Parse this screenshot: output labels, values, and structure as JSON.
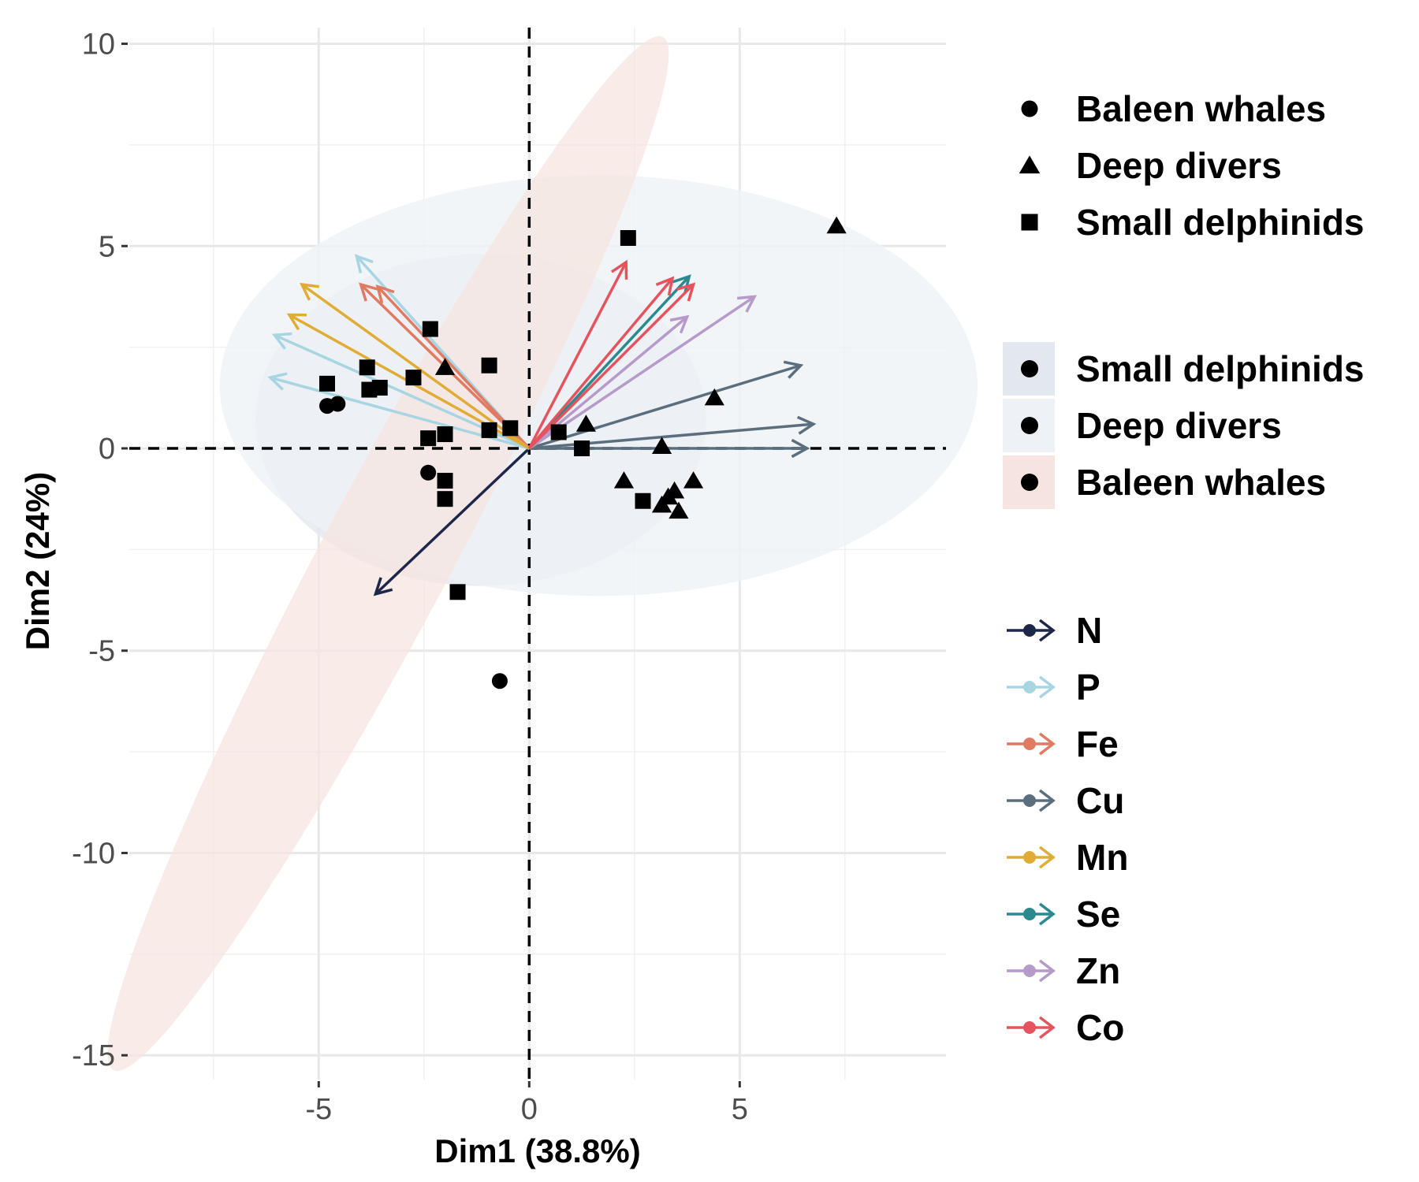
{
  "chart_data": {
    "type": "scatter",
    "xlabel": "Dim1 (38.8%)",
    "ylabel": "Dim2 (24%)",
    "xlim": [
      -9.5,
      9.9
    ],
    "ylim": [
      -15.6,
      10.4
    ],
    "x_ticks": [
      -5,
      0,
      5
    ],
    "x_tick_labels": [
      "-5",
      "0",
      "5"
    ],
    "y_ticks": [
      10,
      5,
      0,
      -5,
      -10,
      -15
    ],
    "y_tick_labels": [
      "10",
      "5",
      "0",
      "-5",
      "-10",
      "-15"
    ],
    "grid": true,
    "reference_lines": {
      "x": 0,
      "y": 0,
      "style": "dashed"
    },
    "legend_position": "right",
    "groups": [
      {
        "name": "Baleen whales",
        "shape": "circle",
        "fill_color": "#f5e4e0"
      },
      {
        "name": "Deep divers",
        "shape": "triangle",
        "fill_color": "#eef2f6"
      },
      {
        "name": "Small delphinids",
        "shape": "square",
        "fill_color": "#e3e7ee"
      }
    ],
    "points": [
      {
        "group": "Baleen whales",
        "x": -4.8,
        "y": 1.05
      },
      {
        "group": "Baleen whales",
        "x": -4.55,
        "y": 1.1
      },
      {
        "group": "Baleen whales",
        "x": -2.4,
        "y": -0.6
      },
      {
        "group": "Baleen whales",
        "x": -0.7,
        "y": -5.75
      },
      {
        "group": "Deep divers",
        "x": 7.3,
        "y": 5.5
      },
      {
        "group": "Deep divers",
        "x": -2.0,
        "y": 2.0
      },
      {
        "group": "Deep divers",
        "x": 4.4,
        "y": 1.25
      },
      {
        "group": "Deep divers",
        "x": 1.35,
        "y": 0.6
      },
      {
        "group": "Deep divers",
        "x": 3.15,
        "y": 0.05
      },
      {
        "group": "Deep divers",
        "x": 2.25,
        "y": -0.8
      },
      {
        "group": "Deep divers",
        "x": 3.9,
        "y": -0.8
      },
      {
        "group": "Deep divers",
        "x": 3.45,
        "y": -1.05
      },
      {
        "group": "Deep divers",
        "x": 3.3,
        "y": -1.2
      },
      {
        "group": "Deep divers",
        "x": 3.15,
        "y": -1.4
      },
      {
        "group": "Deep divers",
        "x": 3.55,
        "y": -1.55
      },
      {
        "group": "Small delphinids",
        "x": 2.35,
        "y": 5.2
      },
      {
        "group": "Small delphinids",
        "x": -2.35,
        "y": 2.95
      },
      {
        "group": "Small delphinids",
        "x": -0.95,
        "y": 2.05
      },
      {
        "group": "Small delphinids",
        "x": -3.85,
        "y": 2.0
      },
      {
        "group": "Small delphinids",
        "x": -2.75,
        "y": 1.75
      },
      {
        "group": "Small delphinids",
        "x": -4.8,
        "y": 1.6
      },
      {
        "group": "Small delphinids",
        "x": -3.55,
        "y": 1.5
      },
      {
        "group": "Small delphinids",
        "x": -3.8,
        "y": 1.45
      },
      {
        "group": "Small delphinids",
        "x": -0.45,
        "y": 0.5
      },
      {
        "group": "Small delphinids",
        "x": -0.95,
        "y": 0.45
      },
      {
        "group": "Small delphinids",
        "x": 0.7,
        "y": 0.4
      },
      {
        "group": "Small delphinids",
        "x": -2.0,
        "y": 0.35
      },
      {
        "group": "Small delphinids",
        "x": -2.4,
        "y": 0.25
      },
      {
        "group": "Small delphinids",
        "x": 1.25,
        "y": 0.0
      },
      {
        "group": "Small delphinids",
        "x": -2.0,
        "y": -0.8
      },
      {
        "group": "Small delphinids",
        "x": -2.0,
        "y": -1.25
      },
      {
        "group": "Small delphinids",
        "x": 2.7,
        "y": -1.3
      },
      {
        "group": "Small delphinids",
        "x": -1.7,
        "y": -3.55
      }
    ],
    "variables": [
      {
        "name": "N",
        "color": "#1e2749",
        "arrows": [
          [
            -3.65,
            -3.6
          ]
        ]
      },
      {
        "name": "P",
        "color": "#a8d5e2",
        "arrows": [
          [
            -4.1,
            4.75
          ],
          [
            -6.05,
            2.8
          ],
          [
            -6.15,
            1.75
          ]
        ]
      },
      {
        "name": "Fe",
        "color": "#e07a62",
        "arrows": [
          [
            -4.0,
            4.05
          ],
          [
            -3.6,
            4.0
          ]
        ]
      },
      {
        "name": "Cu",
        "color": "#5b6e7e",
        "arrows": [
          [
            6.45,
            2.05
          ],
          [
            6.75,
            0.6
          ],
          [
            6.6,
            0.0
          ]
        ]
      },
      {
        "name": "Mn",
        "color": "#e0ac36",
        "arrows": [
          [
            -5.4,
            4.05
          ],
          [
            -5.7,
            3.3
          ]
        ]
      },
      {
        "name": "Se",
        "color": "#2a8a8f",
        "arrows": [
          [
            3.8,
            4.25
          ]
        ]
      },
      {
        "name": "Zn",
        "color": "#b69ac9",
        "arrows": [
          [
            5.35,
            3.75
          ],
          [
            3.75,
            3.25
          ]
        ]
      },
      {
        "name": "Co",
        "color": "#e5535e",
        "arrows": [
          [
            2.3,
            4.6
          ],
          [
            3.4,
            4.2
          ],
          [
            3.9,
            4.05
          ]
        ]
      }
    ],
    "ellipses": [
      {
        "group": "Small delphinids",
        "cx": -1.15,
        "cy": 0.7,
        "rx": 5.35,
        "ry": 4.1,
        "angle": 0,
        "color": "#e3e7ee",
        "opacity": 0.8
      },
      {
        "group": "Deep divers",
        "cx": 1.65,
        "cy": 1.55,
        "rx": 9.0,
        "ry": 5.2,
        "angle": 0,
        "color": "#eef2f6",
        "opacity": 0.8
      },
      {
        "group": "Baleen whales",
        "cx": -3.35,
        "cy": -2.6,
        "rx": 13.9,
        "ry": 1.6,
        "angle": -62,
        "color": "#f5e4e0",
        "opacity": 0.75
      }
    ]
  },
  "legends": {
    "shape_legend": [
      "Baleen whales",
      "Deep divers",
      "Small delphinids"
    ],
    "fill_legend": [
      "Small delphinids",
      "Deep divers",
      "Baleen whales"
    ],
    "color_legend": [
      "N",
      "P",
      "Fe",
      "Cu",
      "Mn",
      "Se",
      "Zn",
      "Co"
    ]
  }
}
